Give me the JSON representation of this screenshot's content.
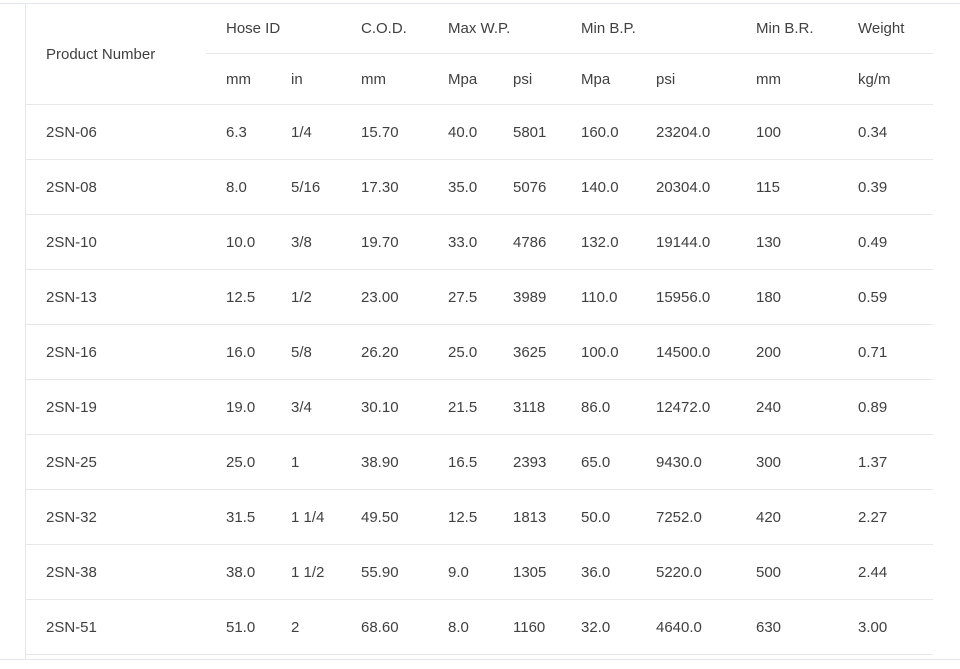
{
  "table": {
    "product_header": "Product Number",
    "groups": [
      {
        "label": "Hose ID"
      },
      {
        "label": "C.O.D."
      },
      {
        "label": "Max W.P."
      },
      {
        "label": "Min B.P."
      },
      {
        "label": "Min B.R."
      },
      {
        "label": "Weight"
      }
    ],
    "units": [
      "mm",
      "in",
      "mm",
      "Mpa",
      "psi",
      "Mpa",
      "psi",
      "mm",
      "kg/m"
    ],
    "rows": [
      [
        "2SN-06",
        "6.3",
        "1/4",
        "15.70",
        "40.0",
        "5801",
        "160.0",
        "23204.0",
        "100",
        "0.34"
      ],
      [
        "2SN-08",
        "8.0",
        "5/16",
        "17.30",
        "35.0",
        "5076",
        "140.0",
        "20304.0",
        "115",
        "0.39"
      ],
      [
        "2SN-10",
        "10.0",
        "3/8",
        "19.70",
        "33.0",
        "4786",
        "132.0",
        "19144.0",
        "130",
        "0.49"
      ],
      [
        "2SN-13",
        "12.5",
        "1/2",
        "23.00",
        "27.5",
        "3989",
        "110.0",
        "15956.0",
        "180",
        "0.59"
      ],
      [
        "2SN-16",
        "16.0",
        "5/8",
        "26.20",
        "25.0",
        "3625",
        "100.0",
        "14500.0",
        "200",
        "0.71"
      ],
      [
        "2SN-19",
        "19.0",
        "3/4",
        "30.10",
        "21.5",
        "3118",
        "86.0",
        "12472.0",
        "240",
        "0.89"
      ],
      [
        "2SN-25",
        "25.0",
        "1",
        "38.90",
        "16.5",
        "2393",
        "65.0",
        "9430.0",
        "300",
        "1.37"
      ],
      [
        "2SN-32",
        "31.5",
        "1 1/4",
        "49.50",
        "12.5",
        "1813",
        "50.0",
        "7252.0",
        "420",
        "2.27"
      ],
      [
        "2SN-38",
        "38.0",
        "1 1/2",
        "55.90",
        "9.0",
        "1305",
        "36.0",
        "5220.0",
        "500",
        "2.44"
      ],
      [
        "2SN-51",
        "51.0",
        "2",
        "68.60",
        "8.0",
        "1160",
        "32.0",
        "4640.0",
        "630",
        "3.00"
      ]
    ]
  }
}
